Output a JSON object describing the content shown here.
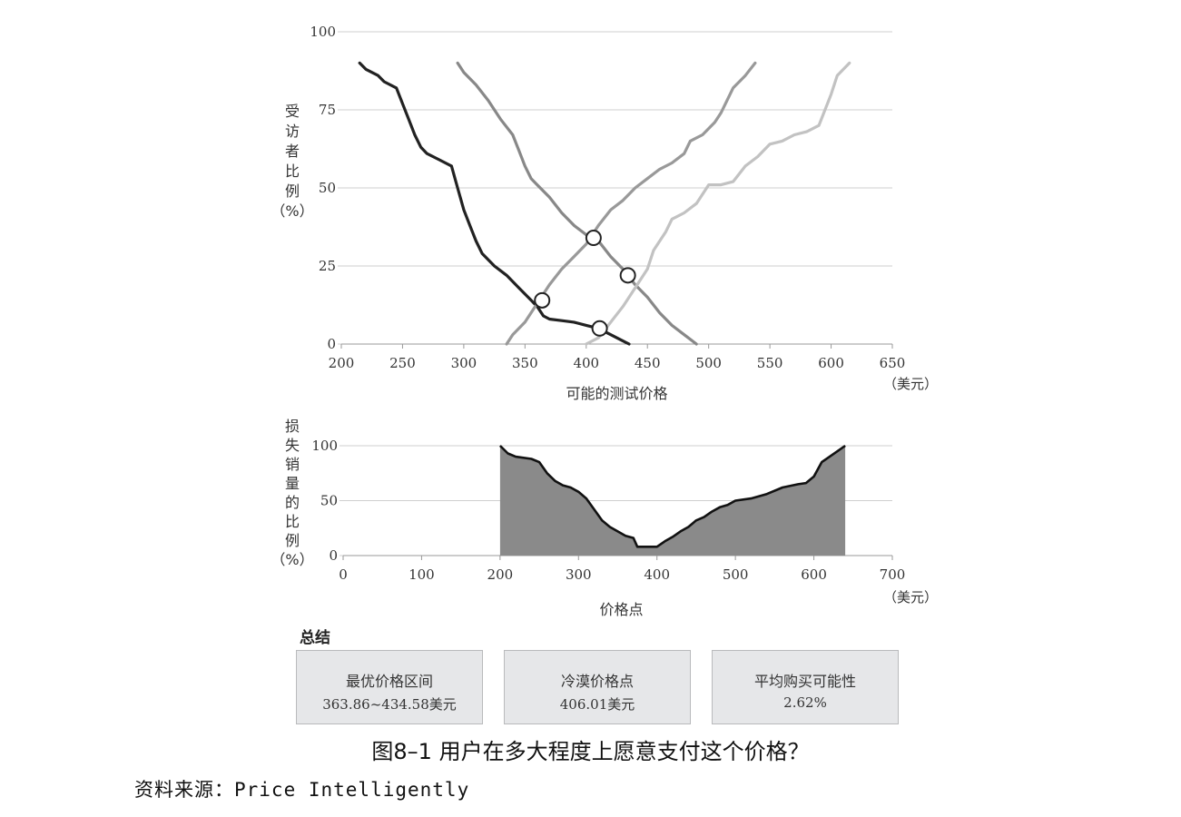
{
  "chart_data": [
    {
      "type": "line",
      "xlabel": "可能的测试价格",
      "xunit": "（美元）",
      "ylabel_chars": [
        "受",
        "访",
        "者",
        "比",
        "例",
        "（%）"
      ],
      "xlim": [
        200,
        650
      ],
      "ylim": [
        0,
        100
      ],
      "xticks": [
        "200",
        "250",
        "300",
        "350",
        "400",
        "450",
        "500",
        "550",
        "600",
        "650"
      ],
      "yticks": [
        "0",
        "25",
        "50",
        "75",
        "100"
      ],
      "grid": true,
      "series": [
        {
          "color": "#222222",
          "points": [
            [
              215,
              90
            ],
            [
              220,
              88
            ],
            [
              230,
              86
            ],
            [
              235,
              84
            ],
            [
              245,
              82
            ],
            [
              250,
              77
            ],
            [
              255,
              72
            ],
            [
              260,
              67
            ],
            [
              265,
              63
            ],
            [
              270,
              61
            ],
            [
              280,
              59
            ],
            [
              290,
              57
            ],
            [
              295,
              50
            ],
            [
              300,
              43
            ],
            [
              305,
              38
            ],
            [
              310,
              33
            ],
            [
              315,
              29
            ],
            [
              325,
              25
            ],
            [
              335,
              22
            ],
            [
              345,
              18
            ],
            [
              355,
              14
            ],
            [
              360,
              12
            ],
            [
              365,
              9
            ],
            [
              370,
              8
            ],
            [
              380,
              7.5
            ],
            [
              390,
              7
            ],
            [
              400,
              6
            ],
            [
              410,
              5
            ],
            [
              420,
              3
            ],
            [
              430,
              1
            ],
            [
              435,
              0
            ]
          ]
        },
        {
          "color": "#888888",
          "points": [
            [
              295,
              90
            ],
            [
              300,
              87
            ],
            [
              310,
              83
            ],
            [
              320,
              78
            ],
            [
              330,
              72
            ],
            [
              340,
              67
            ],
            [
              345,
              62
            ],
            [
              350,
              57
            ],
            [
              355,
              53
            ],
            [
              360,
              51
            ],
            [
              370,
              47
            ],
            [
              380,
              42
            ],
            [
              390,
              38
            ],
            [
              400,
              35
            ],
            [
              410,
              33
            ],
            [
              420,
              28
            ],
            [
              430,
              24
            ],
            [
              440,
              19
            ],
            [
              450,
              15
            ],
            [
              460,
              10
            ],
            [
              470,
              6
            ],
            [
              480,
              3
            ],
            [
              490,
              0
            ]
          ]
        },
        {
          "color": "#999999",
          "points": [
            [
              335,
              0
            ],
            [
              340,
              3
            ],
            [
              345,
              5
            ],
            [
              350,
              7
            ],
            [
              360,
              13
            ],
            [
              370,
              19
            ],
            [
              380,
              24
            ],
            [
              390,
              28
            ],
            [
              400,
              32
            ],
            [
              410,
              38
            ],
            [
              420,
              43
            ],
            [
              430,
              46
            ],
            [
              440,
              50
            ],
            [
              450,
              53
            ],
            [
              460,
              56
            ],
            [
              470,
              58
            ],
            [
              480,
              61
            ],
            [
              485,
              65
            ],
            [
              495,
              67
            ],
            [
              505,
              71
            ],
            [
              510,
              74
            ],
            [
              515,
              78
            ],
            [
              520,
              82
            ],
            [
              530,
              86
            ],
            [
              538,
              90
            ]
          ]
        },
        {
          "color": "#c2c2c2",
          "points": [
            [
              400,
              0
            ],
            [
              410,
              2
            ],
            [
              420,
              7
            ],
            [
              430,
              12
            ],
            [
              440,
              18
            ],
            [
              450,
              24
            ],
            [
              455,
              30
            ],
            [
              465,
              36
            ],
            [
              470,
              40
            ],
            [
              480,
              42
            ],
            [
              490,
              45
            ],
            [
              500,
              51
            ],
            [
              510,
              51
            ],
            [
              520,
              52
            ],
            [
              530,
              57
            ],
            [
              540,
              60
            ],
            [
              550,
              64
            ],
            [
              560,
              65
            ],
            [
              570,
              67
            ],
            [
              580,
              68
            ],
            [
              590,
              70
            ],
            [
              600,
              80
            ],
            [
              605,
              86
            ],
            [
              615,
              90
            ]
          ]
        }
      ],
      "markers": [
        [
          364,
          14
        ],
        [
          406,
          34
        ],
        [
          411,
          5
        ],
        [
          434,
          22
        ]
      ]
    },
    {
      "type": "area",
      "xlabel": "价格点",
      "xunit": "（美元）",
      "ylabel_chars": [
        "损",
        "失",
        "销",
        "量",
        "的",
        "比",
        "例",
        "（%）"
      ],
      "xlim": [
        0,
        700
      ],
      "ylim": [
        0,
        100
      ],
      "xticks": [
        "0",
        "100",
        "200",
        "300",
        "400",
        "500",
        "600",
        "700"
      ],
      "yticks": [
        "0",
        "50",
        "100"
      ],
      "grid": true,
      "color": "#8a8a8a",
      "points": [
        [
          200,
          100
        ],
        [
          210,
          93
        ],
        [
          220,
          90
        ],
        [
          240,
          88
        ],
        [
          250,
          85
        ],
        [
          260,
          75
        ],
        [
          270,
          68
        ],
        [
          280,
          64
        ],
        [
          290,
          62
        ],
        [
          300,
          58
        ],
        [
          310,
          52
        ],
        [
          320,
          42
        ],
        [
          330,
          32
        ],
        [
          340,
          26
        ],
        [
          350,
          22
        ],
        [
          360,
          18
        ],
        [
          370,
          16
        ],
        [
          375,
          8
        ],
        [
          380,
          8
        ],
        [
          390,
          8
        ],
        [
          400,
          8
        ],
        [
          410,
          13
        ],
        [
          420,
          17
        ],
        [
          430,
          22
        ],
        [
          440,
          26
        ],
        [
          450,
          32
        ],
        [
          460,
          35
        ],
        [
          470,
          40
        ],
        [
          480,
          44
        ],
        [
          490,
          46
        ],
        [
          500,
          50
        ],
        [
          520,
          52
        ],
        [
          540,
          56
        ],
        [
          560,
          62
        ],
        [
          580,
          65
        ],
        [
          590,
          66
        ],
        [
          600,
          72
        ],
        [
          610,
          85
        ],
        [
          620,
          90
        ],
        [
          630,
          95
        ],
        [
          640,
          100
        ]
      ]
    }
  ],
  "summary": {
    "title": "总结",
    "boxes": [
      {
        "label": "最优价格区间",
        "value": "363.86~434.58美元"
      },
      {
        "label": "冷漠价格点",
        "value": "406.01美元"
      },
      {
        "label": "平均购买可能性",
        "value": "2.62%"
      }
    ]
  },
  "caption": "图8–1 用户在多大程度上愿意支付这个价格？",
  "source": "资料来源：Price Intelligently"
}
